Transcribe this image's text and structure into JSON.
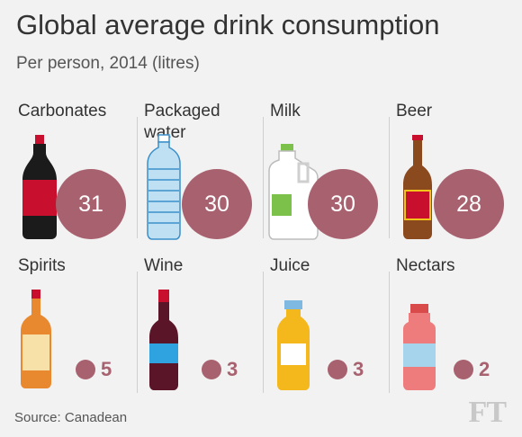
{
  "chart_data": {
    "type": "bar",
    "title": "Global average drink consumption",
    "subtitle": "Per person, 2014 (litres)",
    "categories": [
      "Carbonates",
      "Packaged\n      water",
      "Milk",
      "Beer",
      "Spirits",
      "Wine",
      "Juice",
      "Nectars"
    ],
    "values": [
      31,
      30,
      30,
      28,
      5,
      3,
      3,
      2
    ],
    "source": "Source: Canadean"
  },
  "colors": {
    "circle": "#a8616f",
    "background": "#f2f2f2"
  },
  "icons": [
    "cola-bottle-icon",
    "water-bottle-icon",
    "milk-jug-icon",
    "beer-bottle-icon",
    "spirits-bottle-icon",
    "wine-bottle-icon",
    "juice-bottle-icon",
    "nectar-bottle-icon"
  ],
  "logo": "FT"
}
